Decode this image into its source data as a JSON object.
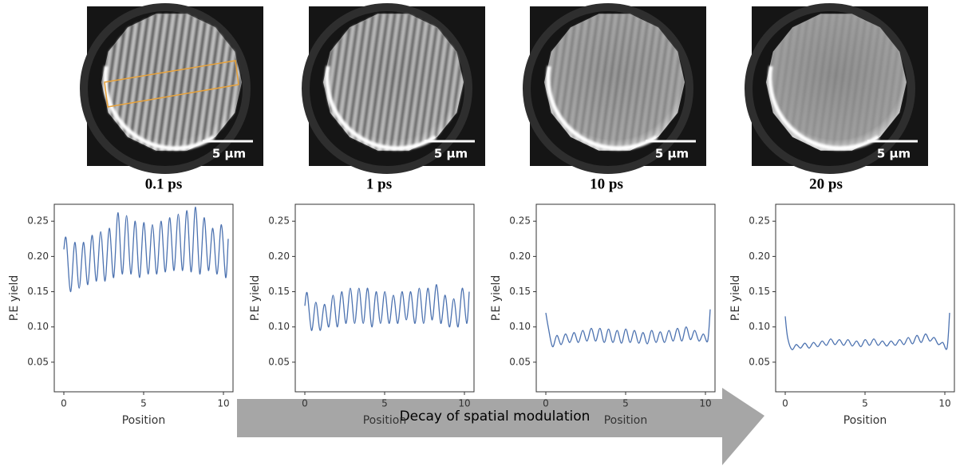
{
  "images": [
    {
      "scale_bar": "5 µm"
    },
    {
      "scale_bar": "5 µm"
    },
    {
      "scale_bar": "5 µm"
    },
    {
      "scale_bar": "5 µm"
    }
  ],
  "arrow_label": "Decay of spatial modulation",
  "chart_data": [
    {
      "type": "line",
      "title": "0.1 ps",
      "xlabel": "Position",
      "ylabel": "P.E yield",
      "color": "#4c72b0",
      "xlim": [
        -0.6,
        10.6
      ],
      "ylim": [
        0.008,
        0.274
      ],
      "xticks": [
        0,
        5,
        10
      ],
      "yticks": [
        0.05,
        {
          "value": 0.1,
          "label": "0.10"
        },
        0.15,
        {
          "value": 0.2,
          "label": "0.20"
        },
        0.25
      ],
      "x": [
        0,
        0.15,
        0.42,
        0.69,
        0.96,
        1.23,
        1.5,
        1.77,
        2.04,
        2.31,
        2.58,
        2.85,
        3.12,
        3.39,
        3.66,
        3.93,
        4.2,
        4.47,
        4.74,
        5.01,
        5.28,
        5.55,
        5.82,
        6.09,
        6.36,
        6.63,
        6.9,
        7.17,
        7.44,
        7.71,
        7.98,
        8.25,
        8.52,
        8.79,
        9.06,
        9.33,
        9.6,
        9.87,
        10.14,
        10.3
      ],
      "values": [
        0.21,
        0.225,
        0.15,
        0.22,
        0.155,
        0.22,
        0.16,
        0.23,
        0.165,
        0.235,
        0.165,
        0.24,
        0.17,
        0.262,
        0.175,
        0.258,
        0.175,
        0.25,
        0.17,
        0.248,
        0.175,
        0.245,
        0.175,
        0.25,
        0.178,
        0.255,
        0.18,
        0.26,
        0.18,
        0.265,
        0.178,
        0.27,
        0.175,
        0.255,
        0.18,
        0.24,
        0.175,
        0.245,
        0.17,
        0.225
      ]
    },
    {
      "type": "line",
      "title": "1 ps",
      "xlabel": "Position",
      "ylabel": "P.E yield",
      "color": "#4c72b0",
      "xlim": [
        -0.6,
        10.6
      ],
      "ylim": [
        0.008,
        0.274
      ],
      "xticks": [
        0,
        5,
        10
      ],
      "yticks": [
        0.05,
        {
          "value": 0.1,
          "label": "0.10"
        },
        0.15,
        {
          "value": 0.2,
          "label": "0.20"
        },
        0.25
      ],
      "x": [
        0,
        0.15,
        0.42,
        0.69,
        0.96,
        1.23,
        1.5,
        1.77,
        2.04,
        2.31,
        2.58,
        2.85,
        3.12,
        3.39,
        3.66,
        3.93,
        4.2,
        4.47,
        4.74,
        5.01,
        5.28,
        5.55,
        5.82,
        6.09,
        6.36,
        6.63,
        6.9,
        7.17,
        7.44,
        7.71,
        7.98,
        8.25,
        8.52,
        8.79,
        9.06,
        9.33,
        9.6,
        9.87,
        10.14,
        10.3
      ],
      "values": [
        0.13,
        0.148,
        0.095,
        0.135,
        0.095,
        0.132,
        0.1,
        0.145,
        0.1,
        0.15,
        0.105,
        0.155,
        0.105,
        0.155,
        0.105,
        0.155,
        0.1,
        0.15,
        0.105,
        0.15,
        0.105,
        0.145,
        0.105,
        0.15,
        0.11,
        0.15,
        0.105,
        0.155,
        0.105,
        0.155,
        0.11,
        0.16,
        0.105,
        0.145,
        0.1,
        0.14,
        0.1,
        0.155,
        0.105,
        0.15
      ]
    },
    {
      "type": "line",
      "title": "10 ps",
      "xlabel": "Position",
      "ylabel": "P.E yield",
      "color": "#4c72b0",
      "xlim": [
        -0.6,
        10.6
      ],
      "ylim": [
        0.008,
        0.274
      ],
      "xticks": [
        0,
        5,
        10
      ],
      "yticks": [
        0.05,
        {
          "value": 0.1,
          "label": "0.10"
        },
        0.15,
        {
          "value": 0.2,
          "label": "0.20"
        },
        0.25
      ],
      "x": [
        0,
        0.15,
        0.42,
        0.69,
        0.96,
        1.23,
        1.5,
        1.77,
        2.04,
        2.31,
        2.58,
        2.85,
        3.12,
        3.39,
        3.66,
        3.93,
        4.2,
        4.47,
        4.74,
        5.01,
        5.28,
        5.55,
        5.82,
        6.09,
        6.36,
        6.63,
        6.9,
        7.17,
        7.44,
        7.71,
        7.98,
        8.25,
        8.52,
        8.79,
        9.06,
        9.33,
        9.6,
        9.87,
        10.14,
        10.3
      ],
      "values": [
        0.12,
        0.1,
        0.072,
        0.088,
        0.075,
        0.09,
        0.078,
        0.092,
        0.078,
        0.095,
        0.08,
        0.098,
        0.08,
        0.098,
        0.078,
        0.097,
        0.078,
        0.095,
        0.077,
        0.097,
        0.078,
        0.095,
        0.077,
        0.092,
        0.076,
        0.095,
        0.078,
        0.093,
        0.078,
        0.095,
        0.08,
        0.098,
        0.08,
        0.1,
        0.082,
        0.095,
        0.08,
        0.09,
        0.08,
        0.125
      ]
    },
    {
      "type": "line",
      "title": "20 ps",
      "xlabel": "Position",
      "ylabel": "P.E yield",
      "color": "#4c72b0",
      "xlim": [
        -0.6,
        10.6
      ],
      "ylim": [
        0.008,
        0.274
      ],
      "xticks": [
        0,
        5,
        10
      ],
      "yticks": [
        0.05,
        {
          "value": 0.1,
          "label": "0.10"
        },
        0.15,
        {
          "value": 0.2,
          "label": "0.20"
        },
        0.25
      ],
      "x": [
        0,
        0.15,
        0.42,
        0.69,
        0.96,
        1.23,
        1.5,
        1.77,
        2.04,
        2.31,
        2.58,
        2.85,
        3.12,
        3.39,
        3.66,
        3.93,
        4.2,
        4.47,
        4.74,
        5.01,
        5.28,
        5.55,
        5.82,
        6.09,
        6.36,
        6.63,
        6.9,
        7.17,
        7.44,
        7.71,
        7.98,
        8.25,
        8.52,
        8.79,
        9.06,
        9.33,
        9.6,
        9.87,
        10.14,
        10.3
      ],
      "values": [
        0.115,
        0.085,
        0.068,
        0.075,
        0.07,
        0.077,
        0.07,
        0.078,
        0.072,
        0.08,
        0.074,
        0.083,
        0.075,
        0.082,
        0.074,
        0.082,
        0.073,
        0.08,
        0.072,
        0.082,
        0.074,
        0.083,
        0.074,
        0.08,
        0.073,
        0.08,
        0.074,
        0.082,
        0.075,
        0.085,
        0.076,
        0.088,
        0.078,
        0.09,
        0.08,
        0.085,
        0.075,
        0.078,
        0.07,
        0.12
      ]
    }
  ]
}
